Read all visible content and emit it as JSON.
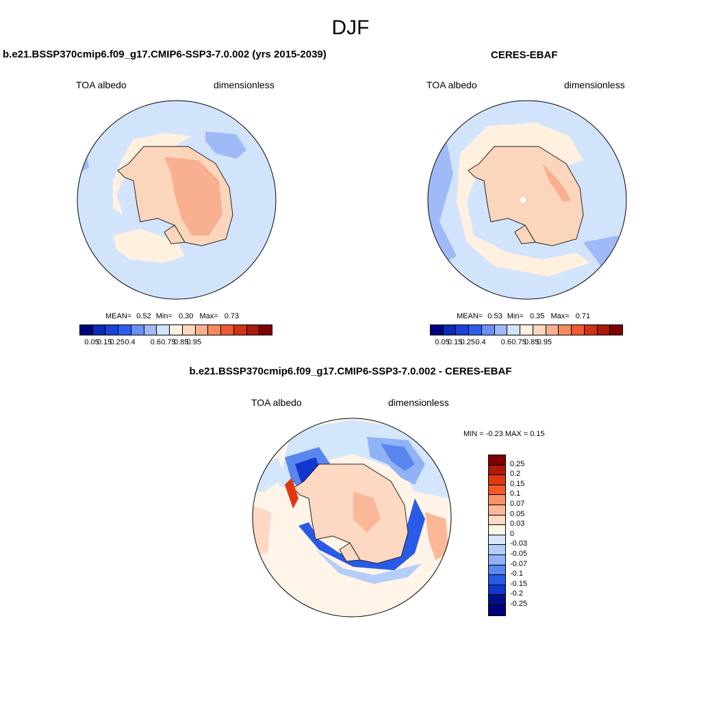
{
  "figure_title": "DJF",
  "panel1": {
    "title": "b.e21.BSSP370cmip6.f09_g17.CMIP6-SSP3-7.0.002 (yrs 2015-2039)",
    "variable": "TOA albedo",
    "units": "dimensionless",
    "mean_label": "MEAN=",
    "mean": "0.52",
    "min_label": "Min=",
    "min": "0.30",
    "max_label": "Max=",
    "max": "0.73"
  },
  "panel2": {
    "title": "CERES-EBAF",
    "variable": "TOA albedo",
    "units": "dimensionless",
    "mean_label": "MEAN=",
    "mean": "0.53",
    "min_label": "Min=",
    "min": "0.35",
    "max_label": "Max=",
    "max": "0.71"
  },
  "panel3": {
    "title": "b.e21.BSSP370cmip6.f09_g17.CMIP6-SSP3-7.0.002 - CERES-EBAF",
    "variable": "TOA albedo",
    "units": "dimensionless",
    "minmax_text": "MIN =  -0.23 MAX =   0.15"
  },
  "abs_colorbar": {
    "colors": [
      "#00007f",
      "#0a2ab8",
      "#1842d8",
      "#2e5ef0",
      "#6a8ef6",
      "#a0baf8",
      "#d2e4fb",
      "#fff0e0",
      "#fbd6bc",
      "#f8b090",
      "#f48a60",
      "#f05a30",
      "#d03214",
      "#a81a0a",
      "#7f0000"
    ],
    "tick_labels": [
      "0.05",
      "0.15",
      "0.25",
      "0.4",
      "0.6",
      "0.75",
      "0.85",
      "0.95"
    ]
  },
  "diff_colorbar": {
    "colors": [
      "#7f0000",
      "#b01a0a",
      "#e0380e",
      "#f45a28",
      "#f89068",
      "#fbb898",
      "#fdd8c2",
      "#fff4e8",
      "#d4e6fb",
      "#b4cef8",
      "#90b2f6",
      "#5a86f0",
      "#2a5ae8",
      "#1038d0",
      "#00108a",
      "#00007a"
    ],
    "tick_labels": [
      "0.25",
      "0.2",
      "0.15",
      "0.1",
      "0.07",
      "0.05",
      "0.03",
      "0",
      "-0.03",
      "-0.05",
      "-0.07",
      "-0.1",
      "-0.15",
      "-0.2",
      "-0.25"
    ]
  }
}
